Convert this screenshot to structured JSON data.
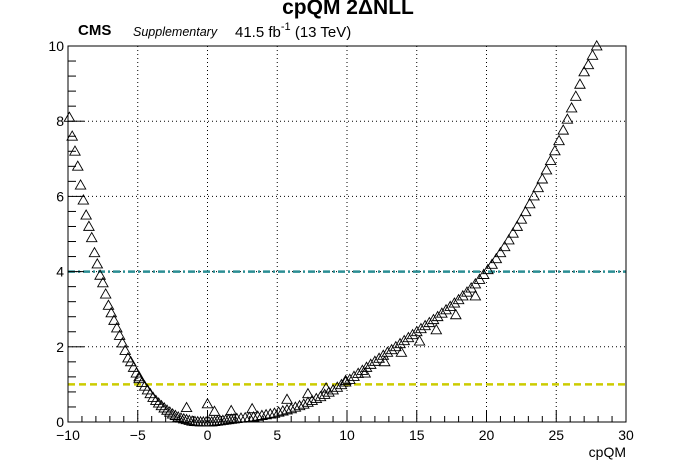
{
  "header": {
    "title": "cpQM 2ΔNLL",
    "experiment": "CMS",
    "tag": "Supplementary",
    "lumi_value": "41.5 fb",
    "lumi_exponent": "-1",
    "energy": "(13 TeV)"
  },
  "chart_data": {
    "type": "scatter",
    "title": "cpQM 2ΔNLL",
    "xlabel": "cpQM",
    "ylabel": "",
    "xlim": [
      -10,
      30
    ],
    "ylim": [
      0,
      10
    ],
    "xticks": [
      -10,
      -5,
      0,
      5,
      10,
      15,
      20,
      25,
      30
    ],
    "yticks": [
      0,
      2,
      4,
      6,
      8,
      10
    ],
    "grid": true,
    "marker": "open-triangle",
    "series": [
      {
        "values": [
          {
            "x": -9.9,
            "y": 8.1
          },
          {
            "x": -9.7,
            "y": 7.6
          },
          {
            "x": -9.5,
            "y": 7.2
          },
          {
            "x": -9.3,
            "y": 6.8
          },
          {
            "x": -9.1,
            "y": 6.3
          },
          {
            "x": -8.9,
            "y": 5.9
          },
          {
            "x": -8.7,
            "y": 5.5
          },
          {
            "x": -8.5,
            "y": 5.2
          },
          {
            "x": -8.3,
            "y": 4.9
          },
          {
            "x": -8.1,
            "y": 4.5
          },
          {
            "x": -7.9,
            "y": 4.2
          },
          {
            "x": -7.7,
            "y": 3.9
          },
          {
            "x": -7.5,
            "y": 3.7
          },
          {
            "x": -7.3,
            "y": 3.4
          },
          {
            "x": -7.1,
            "y": 3.1
          },
          {
            "x": -6.9,
            "y": 2.9
          },
          {
            "x": -6.7,
            "y": 2.7
          },
          {
            "x": -6.5,
            "y": 2.5
          },
          {
            "x": -6.3,
            "y": 2.3
          },
          {
            "x": -6.1,
            "y": 2.1
          },
          {
            "x": -5.9,
            "y": 1.9
          },
          {
            "x": -5.7,
            "y": 1.7
          },
          {
            "x": -5.5,
            "y": 1.6
          },
          {
            "x": -5.3,
            "y": 1.45
          },
          {
            "x": -5.1,
            "y": 1.3
          },
          {
            "x": -4.9,
            "y": 1.15
          },
          {
            "x": -4.7,
            "y": 1.05
          },
          {
            "x": -4.5,
            "y": 0.95
          },
          {
            "x": -4.3,
            "y": 0.85
          },
          {
            "x": -4.1,
            "y": 0.75
          },
          {
            "x": -3.9,
            "y": 0.65
          },
          {
            "x": -3.7,
            "y": 0.57
          },
          {
            "x": -3.5,
            "y": 0.5
          },
          {
            "x": -3.3,
            "y": 0.43
          },
          {
            "x": -3.1,
            "y": 0.37
          },
          {
            "x": -2.9,
            "y": 0.31
          },
          {
            "x": -2.7,
            "y": 0.26
          },
          {
            "x": -2.5,
            "y": 0.21
          },
          {
            "x": -2.3,
            "y": 0.17
          },
          {
            "x": -2.1,
            "y": 0.13
          },
          {
            "x": -1.9,
            "y": 0.1
          },
          {
            "x": -1.7,
            "y": 0.08
          },
          {
            "x": -1.5,
            "y": 0.06
          },
          {
            "x": -1.3,
            "y": 0.04
          },
          {
            "x": -1.1,
            "y": 0.02
          },
          {
            "x": -0.9,
            "y": 0.01
          },
          {
            "x": -0.7,
            "y": 0.005
          },
          {
            "x": -0.5,
            "y": 0.0
          },
          {
            "x": -0.3,
            "y": 0.0
          },
          {
            "x": -0.1,
            "y": 0.0
          },
          {
            "x": 0.1,
            "y": 0.0
          },
          {
            "x": 0.3,
            "y": 0.0
          },
          {
            "x": 0.5,
            "y": 0.01
          },
          {
            "x": 0.7,
            "y": 0.02
          },
          {
            "x": 0.9,
            "y": 0.03
          },
          {
            "x": 1.1,
            "y": 0.04
          },
          {
            "x": 1.3,
            "y": 0.05
          },
          {
            "x": 1.5,
            "y": 0.06
          },
          {
            "x": 1.7,
            "y": 0.07
          },
          {
            "x": 1.9,
            "y": 0.08
          },
          {
            "x": 2.1,
            "y": 0.09
          },
          {
            "x": 2.4,
            "y": 0.1
          },
          {
            "x": 2.7,
            "y": 0.11
          },
          {
            "x": 3.0,
            "y": 0.12
          },
          {
            "x": 3.3,
            "y": 0.13
          },
          {
            "x": 3.6,
            "y": 0.15
          },
          {
            "x": 3.9,
            "y": 0.17
          },
          {
            "x": 4.2,
            "y": 0.19
          },
          {
            "x": 4.5,
            "y": 0.21
          },
          {
            "x": 4.8,
            "y": 0.23
          },
          {
            "x": 5.1,
            "y": 0.26
          },
          {
            "x": 5.4,
            "y": 0.29
          },
          {
            "x": 5.7,
            "y": 0.32
          },
          {
            "x": 6.0,
            "y": 0.35
          },
          {
            "x": 6.3,
            "y": 0.39
          },
          {
            "x": 6.6,
            "y": 0.43
          },
          {
            "x": 6.9,
            "y": 0.47
          },
          {
            "x": 7.2,
            "y": 0.52
          },
          {
            "x": 7.5,
            "y": 0.57
          },
          {
            "x": 7.8,
            "y": 0.62
          },
          {
            "x": 8.1,
            "y": 0.67
          },
          {
            "x": 8.4,
            "y": 0.73
          },
          {
            "x": 8.7,
            "y": 0.79
          },
          {
            "x": 9.0,
            "y": 0.85
          },
          {
            "x": 9.3,
            "y": 0.92
          },
          {
            "x": 9.6,
            "y": 0.99
          },
          {
            "x": 9.9,
            "y": 1.06
          },
          {
            "x": 10.2,
            "y": 1.13
          },
          {
            "x": 10.5,
            "y": 1.21
          },
          {
            "x": 10.8,
            "y": 1.29
          },
          {
            "x": 11.1,
            "y": 1.37
          },
          {
            "x": 11.4,
            "y": 1.45
          },
          {
            "x": 11.7,
            "y": 1.53
          },
          {
            "x": 12.0,
            "y": 1.61
          },
          {
            "x": 12.3,
            "y": 1.69
          },
          {
            "x": 12.6,
            "y": 1.77
          },
          {
            "x": 12.9,
            "y": 1.85
          },
          {
            "x": 13.2,
            "y": 1.92
          },
          {
            "x": 13.5,
            "y": 2.0
          },
          {
            "x": 13.8,
            "y": 2.08
          },
          {
            "x": 14.1,
            "y": 2.16
          },
          {
            "x": 14.4,
            "y": 2.24
          },
          {
            "x": 14.7,
            "y": 2.32
          },
          {
            "x": 15.0,
            "y": 2.4
          },
          {
            "x": 15.3,
            "y": 2.48
          },
          {
            "x": 15.6,
            "y": 2.56
          },
          {
            "x": 15.9,
            "y": 2.64
          },
          {
            "x": 16.2,
            "y": 2.72
          },
          {
            "x": 16.5,
            "y": 2.8
          },
          {
            "x": 16.8,
            "y": 2.89
          },
          {
            "x": 17.1,
            "y": 2.98
          },
          {
            "x": 17.4,
            "y": 3.07
          },
          {
            "x": 17.7,
            "y": 3.16
          },
          {
            "x": 18.0,
            "y": 3.25
          },
          {
            "x": 18.3,
            "y": 3.35
          },
          {
            "x": 18.6,
            "y": 3.45
          },
          {
            "x": 18.9,
            "y": 3.56
          },
          {
            "x": 19.2,
            "y": 3.67
          },
          {
            "x": 19.5,
            "y": 3.79
          },
          {
            "x": 19.8,
            "y": 3.92
          },
          {
            "x": 20.1,
            "y": 4.05
          },
          {
            "x": 20.4,
            "y": 4.19
          },
          {
            "x": 20.7,
            "y": 4.34
          },
          {
            "x": 21.0,
            "y": 4.5
          },
          {
            "x": 21.3,
            "y": 4.66
          },
          {
            "x": 21.6,
            "y": 4.84
          },
          {
            "x": 21.9,
            "y": 5.02
          },
          {
            "x": 22.2,
            "y": 5.2
          },
          {
            "x": 22.5,
            "y": 5.39
          },
          {
            "x": 22.8,
            "y": 5.59
          },
          {
            "x": 23.1,
            "y": 5.8
          },
          {
            "x": 23.4,
            "y": 6.01
          },
          {
            "x": 23.7,
            "y": 6.23
          },
          {
            "x": 24.0,
            "y": 6.46
          },
          {
            "x": 24.3,
            "y": 6.7
          },
          {
            "x": 24.6,
            "y": 6.95
          },
          {
            "x": 24.9,
            "y": 7.21
          },
          {
            "x": 25.2,
            "y": 7.48
          },
          {
            "x": 25.5,
            "y": 7.76
          },
          {
            "x": 25.8,
            "y": 8.05
          },
          {
            "x": 26.1,
            "y": 8.35
          },
          {
            "x": 26.4,
            "y": 8.66
          },
          {
            "x": 26.7,
            "y": 8.98
          },
          {
            "x": 27.0,
            "y": 9.31
          },
          {
            "x": 27.3,
            "y": 9.5
          },
          {
            "x": 27.6,
            "y": 9.75
          },
          {
            "x": 27.9,
            "y": 10.0
          },
          {
            "x": -4.9,
            "y": 1.2
          },
          {
            "x": -1.5,
            "y": 0.38
          },
          {
            "x": 0.0,
            "y": 0.48
          },
          {
            "x": 0.5,
            "y": 0.28
          },
          {
            "x": 1.7,
            "y": 0.3
          },
          {
            "x": 3.2,
            "y": 0.35
          },
          {
            "x": 5.7,
            "y": 0.6
          },
          {
            "x": 7.2,
            "y": 0.75
          },
          {
            "x": 8.5,
            "y": 0.9
          },
          {
            "x": 9.9,
            "y": 1.1
          },
          {
            "x": 11.3,
            "y": 1.3
          },
          {
            "x": 12.7,
            "y": 1.6
          },
          {
            "x": 13.9,
            "y": 1.85
          },
          {
            "x": 15.2,
            "y": 2.15
          },
          {
            "x": 16.4,
            "y": 2.45
          },
          {
            "x": 17.8,
            "y": 2.85
          },
          {
            "x": 19.2,
            "y": 3.35
          }
        ]
      }
    ],
    "reference_lines": [
      {
        "y": 4.0,
        "color": "#2b8e94",
        "style": "dash-dot"
      },
      {
        "y": 1.0,
        "color": "#cccc00",
        "style": "dashed"
      }
    ]
  },
  "colors": {
    "axis": "#000000",
    "grid": "#000000",
    "marker": "#000000"
  }
}
